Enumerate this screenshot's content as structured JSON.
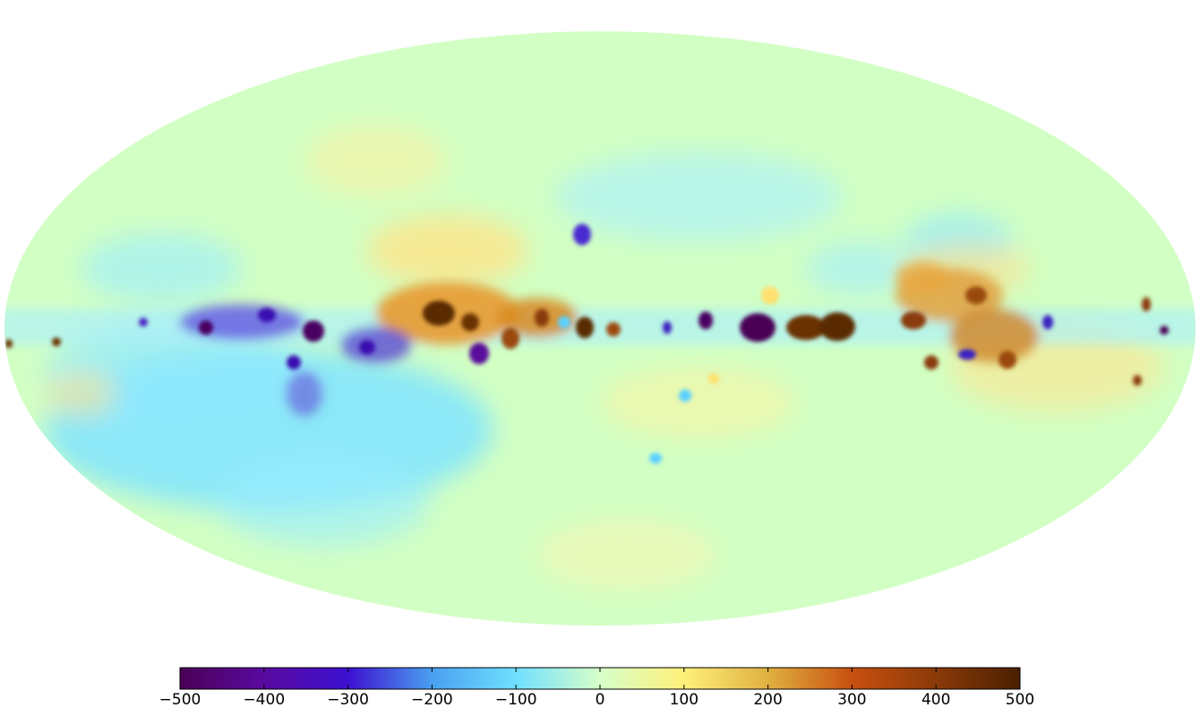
{
  "figure": {
    "projection": "Mollweide",
    "colormap_stops": [
      "#4a0055",
      "#5a0aa0",
      "#3d10d0",
      "#4aa0f0",
      "#6fe0ff",
      "#d6ffc8",
      "#fff07a",
      "#e0b040",
      "#c85010",
      "#8a3a08",
      "#4a2000"
    ],
    "background_value_color": "#d2ffc4",
    "colors": {
      "deep_negative": "#4a0055",
      "negative": "#3d10d0",
      "mild_negative": "#6fe0ff",
      "neutral": "#d6ffc8",
      "mild_positive": "#fff07a",
      "positive": "#c85010",
      "deep_positive": "#5a2a00"
    }
  },
  "colorbar": {
    "min": -500,
    "max": 500,
    "ticks": [
      -500,
      -400,
      -300,
      -200,
      -100,
      0,
      100,
      200,
      300,
      400,
      500
    ],
    "tick_labels": [
      "−500",
      "−400",
      "−300",
      "−200",
      "−100",
      "0",
      "100",
      "200",
      "300",
      "400",
      "500"
    ]
  }
}
